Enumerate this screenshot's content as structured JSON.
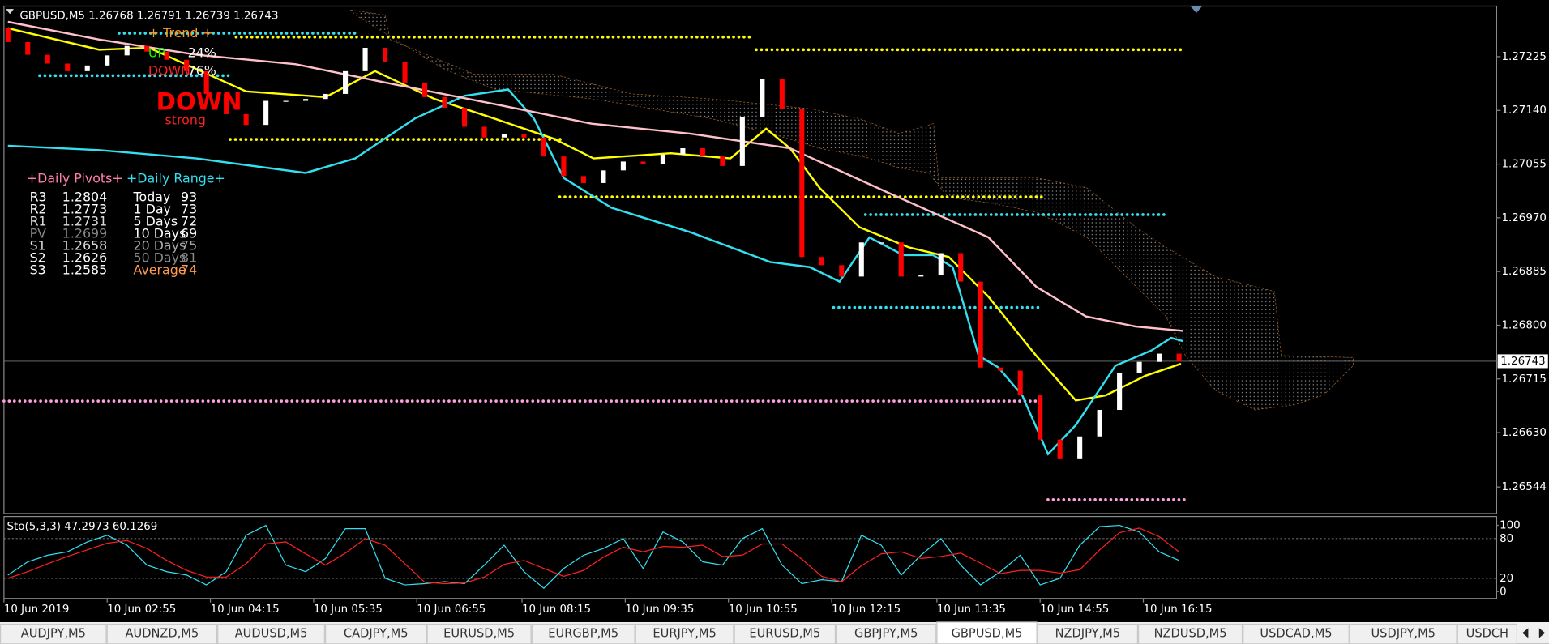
{
  "header": {
    "symbol_info": "GBPUSD,M5  1.26768 1.26791 1.26739 1.26743"
  },
  "chart_data": [
    {
      "type": "candlestick",
      "open": [
        1.2727,
        1.27248,
        1.27228,
        1.27214,
        1.27202,
        1.27211,
        1.27227,
        1.27242,
        1.27233,
        1.2722,
        1.27202,
        1.27166,
        1.27134,
        1.27117,
        1.27155,
        1.27155,
        1.27158,
        1.27166,
        1.27202,
        1.27239,
        1.27216,
        1.27184,
        1.27161,
        1.27144,
        1.27114,
        1.27097,
        1.27102,
        1.27097,
        1.27067,
        1.27036,
        1.27025,
        1.27045,
        1.27059,
        1.27055,
        1.2707,
        1.2708,
        1.27067,
        1.27052,
        1.2713,
        1.27189,
        1.27142,
        1.26908,
        1.26895,
        1.26877,
        1.26931,
        1.26931,
        1.26877,
        1.2688,
        1.26914,
        1.26869,
        1.26733,
        1.26728,
        1.26689,
        1.26619,
        1.26588,
        1.26624,
        1.26666,
        1.26724,
        1.26742,
        1.26755
      ],
      "close": [
        1.27248,
        1.27228,
        1.27214,
        1.27202,
        1.27211,
        1.27227,
        1.27242,
        1.27233,
        1.2722,
        1.27202,
        1.27166,
        1.27134,
        1.27117,
        1.27155,
        1.27155,
        1.27158,
        1.27166,
        1.27202,
        1.27239,
        1.27216,
        1.27184,
        1.27161,
        1.27144,
        1.27114,
        1.27097,
        1.27102,
        1.27097,
        1.27067,
        1.27036,
        1.27025,
        1.27045,
        1.27059,
        1.27055,
        1.2707,
        1.2708,
        1.27067,
        1.27052,
        1.2713,
        1.27189,
        1.27142,
        1.26908,
        1.26895,
        1.26877,
        1.26931,
        1.26931,
        1.26877,
        1.2688,
        1.26914,
        1.26869,
        1.26733,
        1.26728,
        1.26689,
        1.26619,
        1.26588,
        1.26624,
        1.26666,
        1.26724,
        1.26742,
        1.26755,
        1.26743
      ],
      "up_color": "#ffffff",
      "down_color": "#ff0000",
      "xlim": [
        -0.2,
        75
      ],
      "ylim": [
        1.26502,
        1.27305
      ],
      "yticks": [
        1.27225,
        {
          "value": 1.2714,
          "label": "1.27140"
        },
        1.27055,
        {
          "value": 1.2697,
          "label": "1.26970"
        },
        1.26885,
        {
          "value": 1.268,
          "label": "1.26800"
        },
        1.26715,
        {
          "value": 1.2663,
          "label": "1.26630"
        },
        1.26544
      ],
      "xticks": [
        {
          "value": -0.2,
          "label": "10 Jun 2019"
        },
        {
          "value": 5.0,
          "label": "10 Jun 02:55"
        },
        {
          "value": 10.2,
          "label": "10 Jun 04:15"
        },
        {
          "value": 15.4,
          "label": "10 Jun 05:35"
        },
        {
          "value": 20.6,
          "label": "10 Jun 06:55"
        },
        {
          "value": 25.9,
          "label": "10 Jun 08:15"
        },
        {
          "value": 31.1,
          "label": "10 Jun 09:35"
        },
        {
          "value": 36.3,
          "label": "10 Jun 10:55"
        },
        {
          "value": 41.5,
          "label": "10 Jun 12:15"
        },
        {
          "value": 46.8,
          "label": "10 Jun 13:35"
        },
        {
          "value": 52.0,
          "label": "10 Jun 14:55"
        },
        {
          "value": 57.2,
          "label": "10 Jun 16:15"
        }
      ],
      "current_price": 1.26743,
      "series": [
        {
          "color": "#ffff00",
          "x": [
            0,
            4.6,
            7.1,
            12.0,
            16.0,
            18.5,
            21.5,
            24.5,
            27.5,
            29.5,
            33.4,
            36.4,
            38.2,
            39.4,
            40.9,
            42.9,
            45.4,
            47.4,
            49.4,
            51.8,
            53.8,
            55.3,
            57.3,
            59.1
          ],
          "values": [
            1.2727,
            1.27236,
            1.27239,
            1.2717,
            1.27161,
            1.27202,
            1.27158,
            1.27127,
            1.27095,
            1.27064,
            1.27072,
            1.27064,
            1.27111,
            1.2708,
            1.27017,
            1.26955,
            1.26923,
            1.26908,
            1.26845,
            1.26752,
            1.26681,
            1.26689,
            1.2672,
            1.26739
          ]
        },
        {
          "color": "#33e0f0",
          "x": [
            0,
            4.6,
            9.5,
            15.0,
            17.5,
            20.5,
            23.0,
            25.2,
            26.5,
            28.0,
            30.4,
            34.4,
            38.4,
            40.4,
            41.9,
            43.4,
            45.1,
            46.6,
            47.6,
            48.9,
            49.9,
            51.1,
            52.4,
            53.8,
            55.8,
            57.6,
            58.6,
            59.2
          ],
          "values": [
            1.27084,
            1.27077,
            1.27064,
            1.27041,
            1.27064,
            1.27127,
            1.27163,
            1.27173,
            1.27127,
            1.27033,
            1.26986,
            1.26947,
            1.269,
            1.26892,
            1.26869,
            1.26939,
            1.26911,
            1.26911,
            1.26892,
            1.26752,
            1.26733,
            1.26689,
            1.26596,
            1.26642,
            1.26736,
            1.2676,
            1.2678,
            1.26775
          ]
        },
        {
          "color": "#ffc0cb",
          "x": [
            0,
            4.6,
            9.5,
            14.5,
            19.5,
            24.5,
            29.4,
            34.4,
            39.4,
            44.4,
            49.4,
            51.8,
            54.3,
            56.8,
            59.2
          ],
          "values": [
            1.2728,
            1.27252,
            1.27228,
            1.27213,
            1.27181,
            1.2715,
            1.27119,
            1.27103,
            1.2708,
            1.27009,
            1.26939,
            1.26861,
            1.26814,
            1.26798,
            1.26791
          ]
        }
      ],
      "levels": [
        {
          "value": 1.27256,
          "from": 11.5,
          "to": 37.4,
          "color": "#ffff00"
        },
        {
          "value": 1.27236,
          "from": 37.7,
          "to": 59.3,
          "color": "#ffff00"
        },
        {
          "value": 1.27094,
          "from": 11.2,
          "to": 28.0,
          "color": "#ffff00"
        },
        {
          "value": 1.27003,
          "from": 27.8,
          "to": 52.1,
          "color": "#ffff00"
        },
        {
          "value": 1.26975,
          "from": 43.2,
          "to": 58.3,
          "color": "#33e0f0"
        },
        {
          "value": 1.26828,
          "from": 41.6,
          "to": 52.1,
          "color": "#33e0f0"
        },
        {
          "value": 1.2668,
          "from": -0.2,
          "to": 52.1,
          "color": "#ffa0e0"
        },
        {
          "value": 1.26524,
          "from": 52.4,
          "to": 59.3,
          "color": "#ffa0e0"
        },
        {
          "value": 1.27195,
          "from": 1.6,
          "to": 11.3,
          "color": "#33e0f0"
        },
        {
          "value": 1.27262,
          "from": 5.6,
          "to": 17.5,
          "color": "#33e0f0"
        }
      ]
    },
    {
      "type": "line",
      "title": "Sto(5,3,3) 47.2973 60.1269",
      "xlim": [
        -0.2,
        75
      ],
      "ylim": [
        -10.4,
        113.4
      ],
      "yticks": [
        100,
        80,
        20,
        0
      ],
      "grid": true,
      "series": [
        {
          "color": "#33e0f0",
          "values": [
            25,
            45,
            55,
            60,
            75,
            85,
            70,
            40,
            30,
            25,
            10,
            30,
            85,
            100,
            40,
            30,
            50,
            95,
            95,
            20,
            10,
            12,
            15,
            12,
            40,
            70,
            30,
            5,
            35,
            55,
            65,
            80,
            35,
            90,
            75,
            45,
            40,
            80,
            95,
            40,
            12,
            18,
            15,
            85,
            70,
            25,
            55,
            80,
            40,
            10,
            30,
            55,
            10,
            20,
            70,
            98,
            100,
            90,
            60,
            47
          ]
        },
        {
          "color": "#ff2020",
          "values": [
            20,
            30,
            42,
            53,
            63,
            73,
            77,
            65,
            47,
            32,
            22,
            22,
            42,
            72,
            75,
            57,
            40,
            58,
            80,
            70,
            42,
            14,
            12,
            13,
            22,
            41,
            47,
            35,
            23,
            32,
            52,
            67,
            60,
            68,
            67,
            70,
            53,
            55,
            72,
            72,
            49,
            23,
            15,
            39,
            57,
            60,
            50,
            53,
            58,
            43,
            27,
            32,
            32,
            28,
            33,
            63,
            89,
            96,
            83,
            60
          ]
        }
      ]
    }
  ],
  "trend": {
    "title": "+ Trend +",
    "up_label": "UP",
    "up_pct": "24%",
    "down_label": "DOWN",
    "down_pct": "76%",
    "signal": "DOWN",
    "strength": "strong"
  },
  "pivots": {
    "title": "+Daily Pivots+",
    "rows": [
      [
        "R3",
        1.2804
      ],
      [
        "R2",
        1.2773
      ],
      [
        "R1",
        1.2731
      ],
      [
        "PV",
        1.2699
      ],
      [
        "S1",
        1.2658
      ],
      [
        "S2",
        1.2626
      ],
      [
        "S3",
        1.2585
      ]
    ]
  },
  "range": {
    "title": "+Daily Range+",
    "rows": [
      [
        "Today",
        93
      ],
      [
        "1 Day",
        73
      ],
      [
        "5 Days",
        72
      ],
      [
        "10 Days",
        69
      ],
      [
        "20 Days",
        75
      ],
      [
        "50 Days",
        81
      ],
      [
        "Average",
        74
      ]
    ]
  },
  "tabs": [
    "AUDJPY,M5",
    "AUDNZD,M5",
    "AUDUSD,M5",
    "CADJPY,M5",
    "EURUSD,M5",
    "EURGBP,M5",
    "EURJPY,M5",
    "EURUSD,M5",
    "GBPJPY,M5",
    "GBPUSD,M5",
    "NZDJPY,M5",
    "NZDUSD,M5",
    "USDCAD,M5",
    "USDJPY,M5",
    "USDCH"
  ],
  "active_tab": 9
}
